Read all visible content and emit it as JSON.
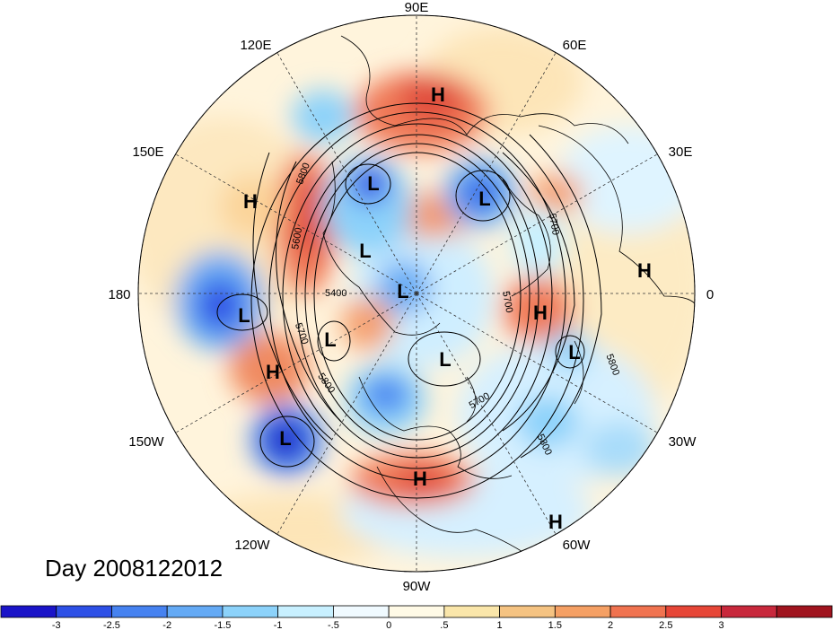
{
  "title": "Day 2008122012",
  "longitude_labels": [
    "90E",
    "60E",
    "30E",
    "0",
    "30W",
    "60W",
    "90W",
    "120W",
    "150W",
    "180",
    "150E",
    "120E"
  ],
  "contour_labels": [
    "5800",
    "5700",
    "5600",
    "5400",
    "5700",
    "5800",
    "5700",
    "5800",
    "5700",
    "5800"
  ],
  "pressure_centers": [
    "H",
    "L",
    "H",
    "L",
    "L",
    "L",
    "H",
    "L",
    "H",
    "L",
    "L",
    "H",
    "L",
    "H",
    "L",
    "H"
  ],
  "colorbar": {
    "colors": [
      "#1a14c8",
      "#2d50e6",
      "#4682f0",
      "#64aaf5",
      "#8cd2fa",
      "#c8f0ff",
      "#f0faff",
      "#fffae6",
      "#fae6aa",
      "#f5c382",
      "#f5a064",
      "#f07350",
      "#e64637",
      "#c8283c",
      "#a0141e"
    ],
    "ticks": [
      "-3",
      "-2.5",
      "-2",
      "-1.5",
      "-1",
      "-.5",
      "0",
      ".5",
      "1",
      "1.5",
      "2",
      "2.5",
      "3"
    ]
  }
}
